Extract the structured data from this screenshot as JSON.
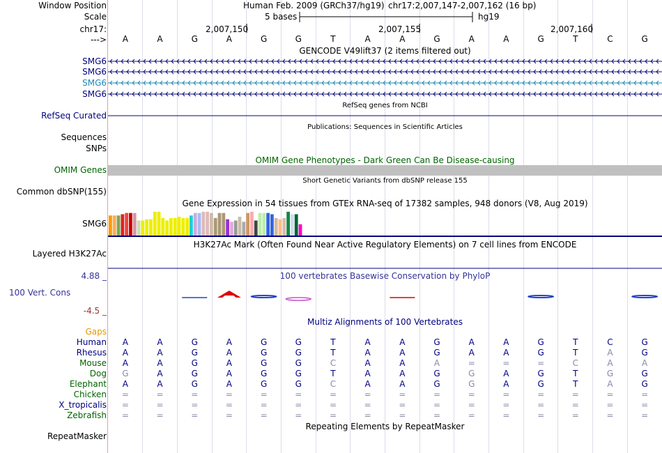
{
  "ruler": {
    "window_position_label": "Window Position",
    "scale_label": "Scale",
    "chrom_label": "chr17:",
    "arrow_label": "--->",
    "assembly": "Human Feb. 2009 (GRCh37/hg19)",
    "position": "chr17:2,007,147-2,007,162 (16 bp)",
    "scale_text": "5 bases",
    "db": "hg19",
    "coord_ticks": [
      "2,007,150",
      "2,007,155",
      "2,007,160"
    ],
    "bases": [
      "A",
      "A",
      "G",
      "A",
      "G",
      "G",
      "T",
      "A",
      "A",
      "G",
      "A",
      "A",
      "G",
      "T",
      "C",
      "G"
    ]
  },
  "gencode": {
    "title": "GENCODE V49lift37 (2 items filtered out)",
    "genes": [
      "SMG6",
      "SMG6",
      "SMG6",
      "SMG6"
    ],
    "colors": [
      "#0c0c78",
      "#0c0c78",
      "#1e88b4",
      "#0c0c78"
    ]
  },
  "refseq": {
    "title": "RefSeq genes from NCBI",
    "label": "RefSeq Curated"
  },
  "publications": {
    "title": "Publications: Sequences in Scientific Articles",
    "labels": [
      "Sequences",
      "SNPs"
    ]
  },
  "omim": {
    "title": "OMIM Gene Phenotypes - Dark Green Can Be Disease-causing",
    "label": "OMIM Genes",
    "color": "#006400"
  },
  "dbsnp": {
    "title": "Short Genetic Variants from dbSNP release 155",
    "label": "Common dbSNP(155)"
  },
  "gtex": {
    "title": "Gene Expression in 54 tissues from GTEx RNA-seq of 17382 samples, 948 donors (V8, Aug 2019)",
    "label": "SMG6",
    "bars": [
      {
        "c": "#ff9900",
        "v": 0.8
      },
      {
        "c": "#ffaa55",
        "v": 0.8
      },
      {
        "c": "#77aa55",
        "v": 0.8
      },
      {
        "c": "#dd2222",
        "v": 0.85
      },
      {
        "c": "#ee4444",
        "v": 0.9
      },
      {
        "c": "#cc0000",
        "v": 0.9
      },
      {
        "c": "#cc99aa",
        "v": 0.9
      },
      {
        "c": "#ccddaa",
        "v": 0.6
      },
      {
        "c": "#eeee00",
        "v": 0.6
      },
      {
        "c": "#eeee00",
        "v": 0.65
      },
      {
        "c": "#eeee00",
        "v": 0.65
      },
      {
        "c": "#eeee00",
        "v": 0.95
      },
      {
        "c": "#eeee00",
        "v": 0.95
      },
      {
        "c": "#eeee00",
        "v": 0.7
      },
      {
        "c": "#eeee00",
        "v": 0.6
      },
      {
        "c": "#eeee00",
        "v": 0.7
      },
      {
        "c": "#eeee00",
        "v": 0.7
      },
      {
        "c": "#eeee00",
        "v": 0.75
      },
      {
        "c": "#eeee00",
        "v": 0.7
      },
      {
        "c": "#eeee00",
        "v": 0.7
      },
      {
        "c": "#22ccdd",
        "v": 0.8
      },
      {
        "c": "#ccaadd",
        "v": 0.9
      },
      {
        "c": "#aabbee",
        "v": 0.9
      },
      {
        "c": "#ddbbbb",
        "v": 0.95
      },
      {
        "c": "#ddbbbb",
        "v": 0.95
      },
      {
        "c": "#ccbbaa",
        "v": 0.9
      },
      {
        "c": "#aa9977",
        "v": 0.7
      },
      {
        "c": "#aa9977",
        "v": 0.9
      },
      {
        "c": "#aa9977",
        "v": 0.9
      },
      {
        "c": "#9933cc",
        "v": 0.65
      },
      {
        "c": "#ddaadd",
        "v": 0.55
      },
      {
        "c": "#999999",
        "v": 0.6
      },
      {
        "c": "#ccbbaa",
        "v": 0.75
      },
      {
        "c": "#aaaaaa",
        "v": 0.55
      },
      {
        "c": "#cc9966",
        "v": 0.9
      },
      {
        "c": "#ffaaaa",
        "v": 0.95
      },
      {
        "c": "#444444",
        "v": 0.6
      },
      {
        "c": "#bbeeaa",
        "v": 0.9
      },
      {
        "c": "#bbeeaa",
        "v": 0.9
      },
      {
        "c": "#3366dd",
        "v": 0.9
      },
      {
        "c": "#3366dd",
        "v": 0.85
      },
      {
        "c": "#ccbbaa",
        "v": 0.7
      },
      {
        "c": "#ffbb88",
        "v": 0.65
      },
      {
        "c": "#ddbbaa",
        "v": 0.7
      },
      {
        "c": "#118844",
        "v": 0.95
      },
      {
        "c": "#ccddee",
        "v": 0.85
      },
      {
        "c": "#006633",
        "v": 0.85
      },
      {
        "c": "#ff00cc",
        "v": 0.45
      }
    ]
  },
  "h3k27ac": {
    "title": "H3K27Ac Mark (Often Found Near Active Regulatory Elements) on 7 cell lines from ENCODE",
    "label": "Layered H3K27Ac"
  },
  "phylop": {
    "title": "100 vertebrates Basewise Conservation by PhyloP",
    "label": "100 Vert. Cons",
    "max_label": "4.88 _",
    "min_label": "-4.5 _",
    "logo": [
      {
        "i": 2,
        "letter": "",
        "score": 0.1
      },
      {
        "i": 3,
        "letter": "A",
        "score": 1.0
      },
      {
        "i": 4,
        "letter": "G",
        "score": 0.4
      },
      {
        "i": 5,
        "letter": "",
        "score": -0.2
      },
      {
        "i": 8,
        "letter": "",
        "score": 0.05
      },
      {
        "i": 12,
        "letter": "G",
        "score": 0.3
      },
      {
        "i": 15,
        "letter": "G",
        "score": 0.3
      }
    ],
    "letter_color": "#dd0000",
    "pos_color": "#2244cc",
    "neg_color": "#cc55cc"
  },
  "multiz": {
    "title": "Multiz Alignments of 100 Vertebrates",
    "gaps_label": "Gaps",
    "gaps_color": "#e69500",
    "species": [
      {
        "name": "Human",
        "color": "#000080",
        "seq": [
          "A",
          "A",
          "G",
          "A",
          "G",
          "G",
          "T",
          "A",
          "A",
          "G",
          "A",
          "A",
          "G",
          "T",
          "C",
          "G"
        ],
        "faint": []
      },
      {
        "name": "Rhesus",
        "color": "#000080",
        "seq": [
          "A",
          "A",
          "G",
          "A",
          "G",
          "G",
          "T",
          "A",
          "A",
          "G",
          "A",
          "A",
          "G",
          "T",
          "A",
          "G"
        ],
        "faint": [
          14
        ]
      },
      {
        "name": "Mouse",
        "color": "#006400",
        "seq": [
          "A",
          "A",
          "G",
          "A",
          "G",
          "G",
          "C",
          "A",
          "A",
          "A",
          "=",
          "=",
          "=",
          "C",
          "A",
          "A"
        ],
        "faint": [
          6,
          9,
          10,
          11,
          12,
          13,
          14,
          15
        ]
      },
      {
        "name": "Dog",
        "color": "#006400",
        "seq": [
          "G",
          "A",
          "G",
          "A",
          "G",
          "G",
          "T",
          "A",
          "A",
          "G",
          "G",
          "A",
          "G",
          "T",
          "G",
          "G"
        ],
        "faint": [
          0,
          10,
          14
        ]
      },
      {
        "name": "Elephant",
        "color": "#006400",
        "seq": [
          "A",
          "A",
          "G",
          "A",
          "G",
          "G",
          "C",
          "A",
          "A",
          "G",
          "G",
          "A",
          "G",
          "T",
          "A",
          "G"
        ],
        "faint": [
          6,
          10,
          14
        ]
      },
      {
        "name": "Chicken",
        "color": "#006400",
        "seq": [
          "=",
          "=",
          "=",
          "=",
          "=",
          "=",
          "=",
          "=",
          "=",
          "=",
          "=",
          "=",
          "=",
          "=",
          "=",
          "="
        ],
        "faint": [
          0,
          1,
          2,
          3,
          4,
          5,
          6,
          7,
          8,
          9,
          10,
          11,
          12,
          13,
          14,
          15
        ]
      },
      {
        "name": "X_tropicalis",
        "color": "#000080",
        "seq": [
          "=",
          "=",
          "=",
          "=",
          "=",
          "=",
          "=",
          "=",
          "=",
          "=",
          "=",
          "=",
          "=",
          "=",
          "=",
          "="
        ],
        "faint": [
          0,
          1,
          2,
          3,
          4,
          5,
          6,
          7,
          8,
          9,
          10,
          11,
          12,
          13,
          14,
          15
        ]
      },
      {
        "name": "Zebrafish",
        "color": "#006400",
        "seq": [
          "=",
          "=",
          "=",
          "=",
          "=",
          "=",
          "=",
          "=",
          "=",
          "=",
          "=",
          "=",
          "=",
          "=",
          "=",
          "="
        ],
        "faint": [
          0,
          1,
          2,
          3,
          4,
          5,
          6,
          7,
          8,
          9,
          10,
          11,
          12,
          13,
          14,
          15
        ]
      }
    ]
  },
  "repeatmasker": {
    "title": "Repeating Elements by RepeatMasker",
    "label": "RepeatMasker"
  }
}
